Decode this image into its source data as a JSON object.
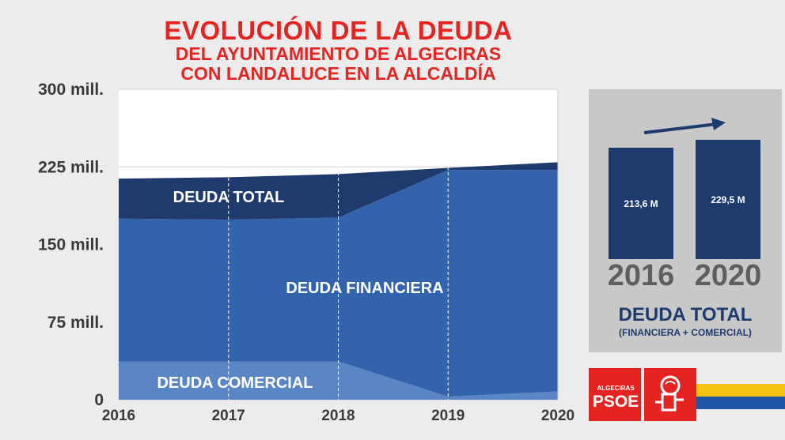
{
  "title": {
    "line1": "EVOLUCIÓN DE LA DEUDA",
    "line2": "DEL AYUNTAMIENTO DE ALGECIRAS",
    "line3": "CON LANDALUCE EN LA ALCALDÍA"
  },
  "colors": {
    "title_red": "#e52421",
    "total_dark_blue": "#1f3a6c",
    "financiera_blue": "#3463ad",
    "comercial_blue": "#5b86c6",
    "background": "#ececec",
    "flag_yellow": "#f5c30f",
    "flag_blue": "#1f55a6"
  },
  "chart_data": [
    {
      "type": "area",
      "stacked": true,
      "categories": [
        "2016",
        "2017",
        "2018",
        "2019",
        "2020"
      ],
      "y_ticks": [
        "0",
        "75 mill.",
        "150 mill.",
        "225 mill.",
        "300 mill."
      ],
      "ylim": [
        0,
        300
      ],
      "grid": true,
      "series": [
        {
          "name": "DEUDA COMERCIAL",
          "values": [
            37,
            37,
            37,
            3,
            8
          ]
        },
        {
          "name": "DEUDA FINANCIERA",
          "values": [
            138,
            137,
            139,
            219,
            214
          ]
        },
        {
          "name": "DEUDA TOTAL",
          "values": [
            38.6,
            41,
            42,
            2,
            7.5
          ]
        }
      ],
      "totals": [
        213.6,
        215,
        218,
        224,
        229.5
      ]
    },
    {
      "type": "bar",
      "categories": [
        "2016",
        "2020"
      ],
      "values": [
        213.6,
        229.5
      ],
      "data_labels": [
        "213,6 M",
        "229,5 M"
      ],
      "title": "DEUDA TOTAL",
      "subtitle": "(FINANCIERA + COMERCIAL)"
    }
  ],
  "logo": {
    "city": "ALGECIRAS",
    "party": "PSOE",
    "emblem": "rose-in-fist-icon"
  }
}
